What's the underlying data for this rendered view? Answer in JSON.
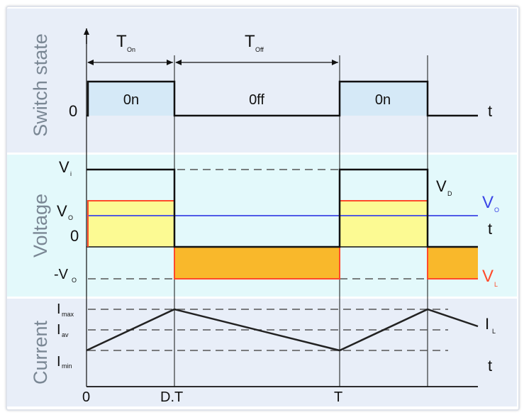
{
  "sections": {
    "switch_state": "Switch state",
    "voltage": "Voltage",
    "current": "Current"
  },
  "intervals": {
    "t_on": "T",
    "t_on_sub": "On",
    "t_off": "T",
    "t_off_sub": "Off",
    "on_label": "0n",
    "off_label": "0ff"
  },
  "switch_panel": {
    "zero": "0",
    "t_axis": "t"
  },
  "voltage_panel": {
    "vi": "V",
    "vi_sub": "i",
    "vo": "V",
    "vo_sub": "O",
    "zero": "0",
    "neg_vo": "-V",
    "neg_vo_sub": "O",
    "vd": "V",
    "vd_sub": "D",
    "vo_right": "V",
    "vo_right_sub": "O",
    "vl": "V",
    "vl_sub": "L",
    "t_axis": "t"
  },
  "current_panel": {
    "imax": "I",
    "imax_sub": "max",
    "iav": "I",
    "iav_sub": "av",
    "imin": "I",
    "imin_sub": "min",
    "il": "I",
    "il_sub": "L",
    "t_axis": "t"
  },
  "time_axis": {
    "zero": "0",
    "dt": "D.T",
    "T": "T"
  },
  "colors": {
    "panel_blue": "#e8eef8",
    "panel_cyan": "#e3f9fb",
    "on_fill": "#d5e9f7",
    "yellow_fill": "#fcfa93",
    "orange_fill": "#f9b82b",
    "red_line": "#ff4a2a",
    "blue_line": "#3b46e6",
    "dash": "#555555",
    "side_text": "#7a8794"
  }
}
